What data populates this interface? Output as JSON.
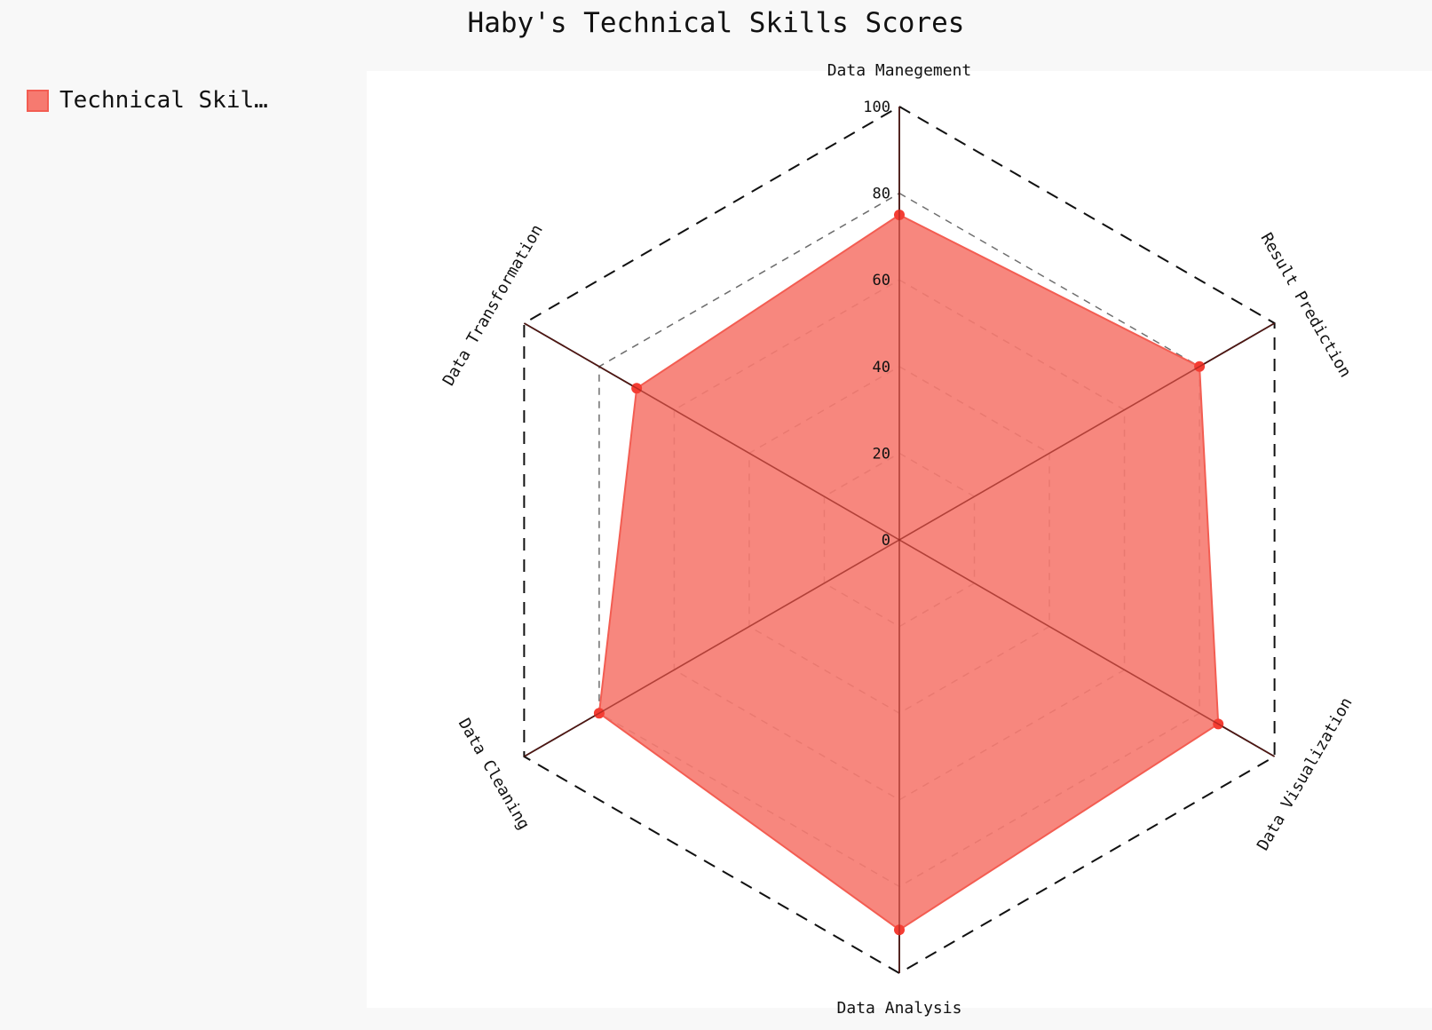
{
  "chart_data": {
    "type": "radar",
    "title": "Haby's Technical Skills Scores",
    "categories": [
      "Data Manegement",
      "Result Prediction",
      "Data Visualization",
      "Data Analysis",
      "Data Cleaning",
      "Data Transformation"
    ],
    "series": [
      {
        "name": "Technical Skil…",
        "values": [
          75,
          80,
          85,
          90,
          80,
          70
        ]
      }
    ],
    "rlim": [
      0,
      100
    ],
    "ticks": [
      "0",
      "20",
      "40",
      "60",
      "80",
      "100"
    ],
    "tick_values": [
      0,
      20,
      40,
      60,
      80,
      100
    ],
    "grid": true,
    "legend_position": "top-left",
    "colors": {
      "fill": "#f67a70",
      "stroke": "#f35d52",
      "point": "#f43d33",
      "grid": "#222222",
      "axis": "#111111"
    }
  }
}
